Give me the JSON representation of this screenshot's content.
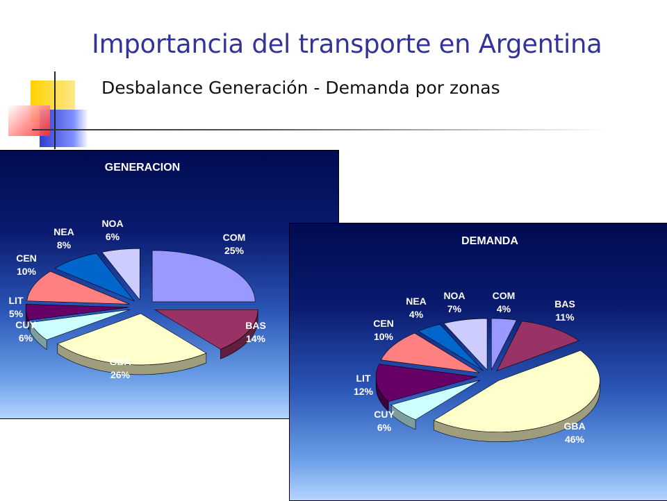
{
  "slide": {
    "title": "Importancia del transporte en Argentina",
    "subtitle": "Desbalance Generación - Demanda por zonas"
  },
  "chart_data": [
    {
      "type": "pie",
      "title": "GENERACION",
      "slices": [
        {
          "label": "COM",
          "value": 25,
          "value_label": "25%",
          "color": "#9999ff"
        },
        {
          "label": "BAS",
          "value": 14,
          "value_label": "14%",
          "color": "#993366"
        },
        {
          "label": "GBA",
          "value": 26,
          "value_label": "26%",
          "color": "#ffffcc"
        },
        {
          "label": "CUY",
          "value": 6,
          "value_label": "6%",
          "color": "#ccffff"
        },
        {
          "label": "LIT",
          "value": 5,
          "value_label": "5%",
          "color": "#660066"
        },
        {
          "label": "CEN",
          "value": 10,
          "value_label": "10%",
          "color": "#ff8080"
        },
        {
          "label": "NEA",
          "value": 8,
          "value_label": "8%",
          "color": "#0066cc"
        },
        {
          "label": "NOA",
          "value": 6,
          "value_label": "6%",
          "color": "#ccccff"
        }
      ]
    },
    {
      "type": "pie",
      "title": "DEMANDA",
      "slices": [
        {
          "label": "COM",
          "value": 4,
          "value_label": "4%",
          "color": "#9999ff"
        },
        {
          "label": "BAS",
          "value": 11,
          "value_label": "11%",
          "color": "#993366"
        },
        {
          "label": "GBA",
          "value": 46,
          "value_label": "46%",
          "color": "#ffffcc"
        },
        {
          "label": "CUY",
          "value": 6,
          "value_label": "6%",
          "color": "#ccffff"
        },
        {
          "label": "LIT",
          "value": 12,
          "value_label": "12%",
          "color": "#660066"
        },
        {
          "label": "CEN",
          "value": 10,
          "value_label": "10%",
          "color": "#ff8080"
        },
        {
          "label": "NEA",
          "value": 4,
          "value_label": "4%",
          "color": "#0066cc"
        },
        {
          "label": "NOA",
          "value": 7,
          "value_label": "7%",
          "color": "#ccccff"
        }
      ]
    }
  ]
}
